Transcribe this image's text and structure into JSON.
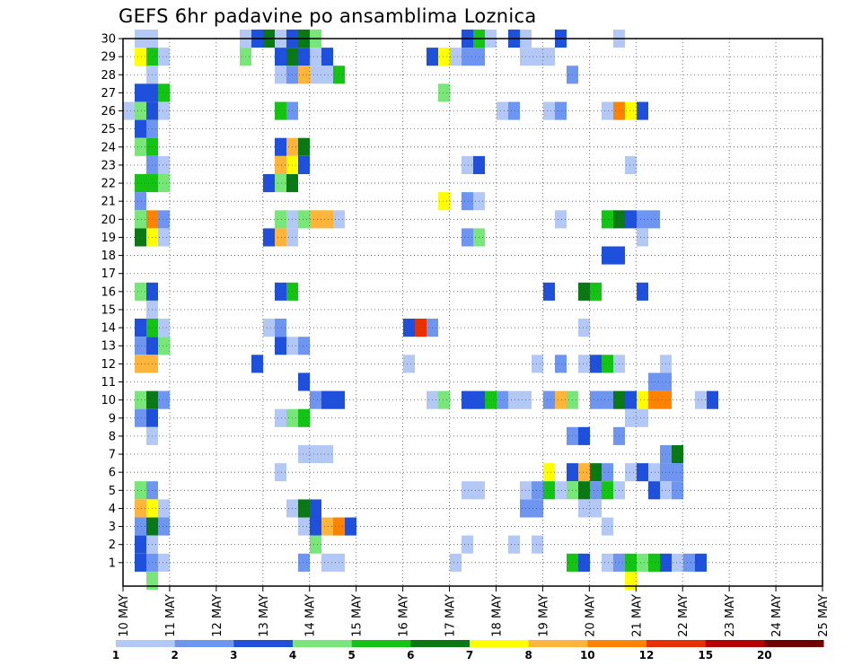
{
  "chart_data": {
    "type": "heatmap",
    "title": "GEFS 6hr padavine po ansamblima Loznica",
    "x_tick_labels": [
      "10 MAY",
      "11 MAY",
      "12 MAY",
      "13 MAY",
      "14 MAY",
      "15 MAY",
      "16 MAY",
      "17 MAY",
      "18 MAY",
      "19 MAY",
      "20 MAY",
      "21 MAY",
      "22 MAY",
      "23 MAY",
      "24 MAY",
      "25 MAY"
    ],
    "y_tick_labels": [
      "1",
      "2",
      "3",
      "4",
      "5",
      "6",
      "7",
      "8",
      "9",
      "10",
      "11",
      "12",
      "13",
      "14",
      "15",
      "16",
      "17",
      "18",
      "19",
      "20",
      "21",
      "22",
      "23",
      "24",
      "25",
      "26",
      "27",
      "28",
      "29",
      "30"
    ],
    "ylim": [
      0,
      30
    ],
    "grid": true,
    "legend": {
      "placement": "bottom",
      "thresholds": [
        "1",
        "2",
        "3",
        "4",
        "5",
        "6",
        "7",
        "8",
        "10",
        "12",
        "15",
        "20"
      ],
      "colors": [
        "#b4c8f5",
        "#6e96f0",
        "#1e50dc",
        "#78e678",
        "#14c314",
        "#0a7814",
        "#ffff00",
        "#ffb43c",
        "#ff8200",
        "#e63200",
        "#b40000",
        "#6e0000"
      ]
    },
    "cells": [
      [
        1,
        30,
        1
      ],
      [
        2,
        30,
        1
      ],
      [
        10,
        30,
        1
      ],
      [
        11,
        30,
        3
      ],
      [
        12,
        30,
        6
      ],
      [
        13,
        30,
        1
      ],
      [
        14,
        30,
        3
      ],
      [
        15,
        30,
        6
      ],
      [
        16,
        30,
        4
      ],
      [
        29,
        30,
        3
      ],
      [
        30,
        30,
        5
      ],
      [
        31,
        30,
        1
      ],
      [
        33,
        30,
        3
      ],
      [
        34,
        30,
        1
      ],
      [
        37,
        30,
        3
      ],
      [
        42,
        30,
        1
      ],
      [
        1,
        29,
        7
      ],
      [
        2,
        29,
        5
      ],
      [
        3,
        29,
        1
      ],
      [
        10,
        29,
        4
      ],
      [
        13,
        29,
        3
      ],
      [
        14,
        29,
        6
      ],
      [
        15,
        29,
        3
      ],
      [
        16,
        29,
        1
      ],
      [
        17,
        29,
        3
      ],
      [
        26,
        29,
        3
      ],
      [
        27,
        29,
        7
      ],
      [
        28,
        29,
        1
      ],
      [
        29,
        29,
        2
      ],
      [
        30,
        29,
        2
      ],
      [
        34,
        29,
        1
      ],
      [
        35,
        29,
        1
      ],
      [
        36,
        29,
        1
      ],
      [
        2,
        28,
        1
      ],
      [
        13,
        28,
        1
      ],
      [
        14,
        28,
        2
      ],
      [
        15,
        28,
        8
      ],
      [
        16,
        28,
        1
      ],
      [
        17,
        28,
        1
      ],
      [
        18,
        28,
        5
      ],
      [
        38,
        28,
        2
      ],
      [
        1,
        27,
        3
      ],
      [
        2,
        27,
        3
      ],
      [
        3,
        27,
        5
      ],
      [
        27,
        27,
        4
      ],
      [
        0,
        26,
        1
      ],
      [
        1,
        26,
        4
      ],
      [
        2,
        26,
        3
      ],
      [
        3,
        26,
        1
      ],
      [
        13,
        26,
        5
      ],
      [
        14,
        26,
        2
      ],
      [
        32,
        26,
        1
      ],
      [
        33,
        26,
        2
      ],
      [
        36,
        26,
        1
      ],
      [
        37,
        26,
        2
      ],
      [
        41,
        26,
        1
      ],
      [
        42,
        26,
        9
      ],
      [
        43,
        26,
        7
      ],
      [
        44,
        26,
        3
      ],
      [
        1,
        25,
        3
      ],
      [
        2,
        25,
        2
      ],
      [
        1,
        24,
        4
      ],
      [
        2,
        24,
        5
      ],
      [
        13,
        24,
        3
      ],
      [
        14,
        24,
        8
      ],
      [
        15,
        24,
        6
      ],
      [
        2,
        23,
        2
      ],
      [
        3,
        23,
        1
      ],
      [
        13,
        23,
        8
      ],
      [
        14,
        23,
        7
      ],
      [
        15,
        23,
        3
      ],
      [
        29,
        23,
        1
      ],
      [
        30,
        23,
        3
      ],
      [
        43,
        23,
        1
      ],
      [
        1,
        22,
        5
      ],
      [
        2,
        22,
        5
      ],
      [
        3,
        22,
        4
      ],
      [
        12,
        22,
        3
      ],
      [
        13,
        22,
        4
      ],
      [
        14,
        22,
        6
      ],
      [
        1,
        21,
        2
      ],
      [
        27,
        21,
        7
      ],
      [
        29,
        21,
        2
      ],
      [
        30,
        21,
        1
      ],
      [
        1,
        20,
        4
      ],
      [
        2,
        20,
        9
      ],
      [
        3,
        20,
        2
      ],
      [
        13,
        20,
        4
      ],
      [
        14,
        20,
        1
      ],
      [
        15,
        20,
        4
      ],
      [
        16,
        20,
        8
      ],
      [
        17,
        20,
        8
      ],
      [
        18,
        20,
        1
      ],
      [
        37,
        20,
        1
      ],
      [
        41,
        20,
        5
      ],
      [
        42,
        20,
        6
      ],
      [
        43,
        20,
        3
      ],
      [
        44,
        20,
        2
      ],
      [
        45,
        20,
        2
      ],
      [
        1,
        19,
        6
      ],
      [
        2,
        19,
        7
      ],
      [
        3,
        19,
        1
      ],
      [
        12,
        19,
        3
      ],
      [
        13,
        19,
        8
      ],
      [
        14,
        19,
        1
      ],
      [
        29,
        19,
        2
      ],
      [
        30,
        19,
        4
      ],
      [
        44,
        19,
        1
      ],
      [
        41,
        18,
        3
      ],
      [
        42,
        18,
        3
      ],
      [
        1,
        16,
        4
      ],
      [
        2,
        16,
        3
      ],
      [
        13,
        16,
        3
      ],
      [
        14,
        16,
        5
      ],
      [
        36,
        16,
        3
      ],
      [
        39,
        16,
        6
      ],
      [
        40,
        16,
        5
      ],
      [
        44,
        16,
        3
      ],
      [
        2,
        15,
        1
      ],
      [
        1,
        14,
        3
      ],
      [
        2,
        14,
        5
      ],
      [
        3,
        14,
        1
      ],
      [
        12,
        14,
        1
      ],
      [
        13,
        14,
        2
      ],
      [
        24,
        14,
        3
      ],
      [
        25,
        14,
        10
      ],
      [
        26,
        14,
        2
      ],
      [
        39,
        14,
        1
      ],
      [
        1,
        13,
        2
      ],
      [
        2,
        13,
        3
      ],
      [
        3,
        13,
        4
      ],
      [
        13,
        13,
        3
      ],
      [
        14,
        13,
        1
      ],
      [
        15,
        13,
        2
      ],
      [
        1,
        12,
        8
      ],
      [
        2,
        12,
        8
      ],
      [
        11,
        12,
        3
      ],
      [
        24,
        12,
        1
      ],
      [
        35,
        12,
        1
      ],
      [
        37,
        12,
        2
      ],
      [
        39,
        12,
        1
      ],
      [
        40,
        12,
        3
      ],
      [
        41,
        12,
        5
      ],
      [
        42,
        12,
        1
      ],
      [
        46,
        12,
        1
      ],
      [
        15,
        11,
        3
      ],
      [
        45,
        11,
        2
      ],
      [
        46,
        11,
        2
      ],
      [
        1,
        10,
        4
      ],
      [
        2,
        10,
        6
      ],
      [
        3,
        10,
        2
      ],
      [
        16,
        10,
        2
      ],
      [
        17,
        10,
        3
      ],
      [
        18,
        10,
        3
      ],
      [
        26,
        10,
        1
      ],
      [
        27,
        10,
        4
      ],
      [
        29,
        10,
        3
      ],
      [
        30,
        10,
        3
      ],
      [
        31,
        10,
        5
      ],
      [
        32,
        10,
        2
      ],
      [
        33,
        10,
        1
      ],
      [
        34,
        10,
        1
      ],
      [
        36,
        10,
        2
      ],
      [
        37,
        10,
        8
      ],
      [
        38,
        10,
        4
      ],
      [
        40,
        10,
        2
      ],
      [
        41,
        10,
        2
      ],
      [
        42,
        10,
        6
      ],
      [
        43,
        10,
        3
      ],
      [
        44,
        10,
        7
      ],
      [
        45,
        10,
        9
      ],
      [
        46,
        10,
        9
      ],
      [
        49,
        10,
        1
      ],
      [
        50,
        10,
        3
      ],
      [
        1,
        9,
        2
      ],
      [
        2,
        9,
        3
      ],
      [
        13,
        9,
        1
      ],
      [
        14,
        9,
        4
      ],
      [
        15,
        9,
        5
      ],
      [
        43,
        9,
        1
      ],
      [
        44,
        9,
        1
      ],
      [
        2,
        8,
        1
      ],
      [
        38,
        8,
        2
      ],
      [
        39,
        8,
        3
      ],
      [
        42,
        8,
        2
      ],
      [
        15,
        7,
        1
      ],
      [
        16,
        7,
        1
      ],
      [
        17,
        7,
        1
      ],
      [
        46,
        7,
        2
      ],
      [
        47,
        7,
        6
      ],
      [
        13,
        6,
        1
      ],
      [
        36,
        6,
        7
      ],
      [
        38,
        6,
        3
      ],
      [
        39,
        6,
        8
      ],
      [
        40,
        6,
        6
      ],
      [
        41,
        6,
        2
      ],
      [
        43,
        6,
        1
      ],
      [
        44,
        6,
        3
      ],
      [
        45,
        6,
        1
      ],
      [
        46,
        6,
        2
      ],
      [
        47,
        6,
        2
      ],
      [
        1,
        5,
        4
      ],
      [
        2,
        5,
        2
      ],
      [
        29,
        5,
        1
      ],
      [
        30,
        5,
        1
      ],
      [
        34,
        5,
        1
      ],
      [
        35,
        5,
        2
      ],
      [
        36,
        5,
        5
      ],
      [
        37,
        5,
        1
      ],
      [
        38,
        5,
        4
      ],
      [
        39,
        5,
        6
      ],
      [
        40,
        5,
        2
      ],
      [
        41,
        5,
        5
      ],
      [
        42,
        5,
        1
      ],
      [
        45,
        5,
        3
      ],
      [
        46,
        5,
        1
      ],
      [
        47,
        5,
        2
      ],
      [
        1,
        4,
        8
      ],
      [
        2,
        4,
        7
      ],
      [
        3,
        4,
        1
      ],
      [
        14,
        4,
        1
      ],
      [
        15,
        4,
        6
      ],
      [
        16,
        4,
        3
      ],
      [
        34,
        4,
        2
      ],
      [
        35,
        4,
        2
      ],
      [
        39,
        4,
        1
      ],
      [
        40,
        4,
        1
      ],
      [
        1,
        3,
        2
      ],
      [
        2,
        3,
        6
      ],
      [
        3,
        3,
        2
      ],
      [
        15,
        3,
        1
      ],
      [
        16,
        3,
        3
      ],
      [
        17,
        3,
        8
      ],
      [
        18,
        3,
        9
      ],
      [
        19,
        3,
        3
      ],
      [
        41,
        3,
        1
      ],
      [
        1,
        2,
        3
      ],
      [
        2,
        2,
        1
      ],
      [
        16,
        2,
        4
      ],
      [
        29,
        2,
        1
      ],
      [
        33,
        2,
        1
      ],
      [
        35,
        2,
        1
      ],
      [
        1,
        1,
        3
      ],
      [
        2,
        1,
        2
      ],
      [
        3,
        1,
        1
      ],
      [
        15,
        1,
        2
      ],
      [
        17,
        1,
        1
      ],
      [
        18,
        1,
        1
      ],
      [
        28,
        1,
        1
      ],
      [
        38,
        1,
        5
      ],
      [
        39,
        1,
        3
      ],
      [
        41,
        1,
        1
      ],
      [
        42,
        1,
        2
      ],
      [
        43,
        1,
        5
      ],
      [
        44,
        1,
        4
      ],
      [
        45,
        1,
        5
      ],
      [
        46,
        1,
        3
      ],
      [
        47,
        1,
        1
      ],
      [
        48,
        1,
        2
      ],
      [
        49,
        1,
        3
      ],
      [
        2,
        0,
        4
      ],
      [
        43,
        0,
        7
      ]
    ]
  }
}
